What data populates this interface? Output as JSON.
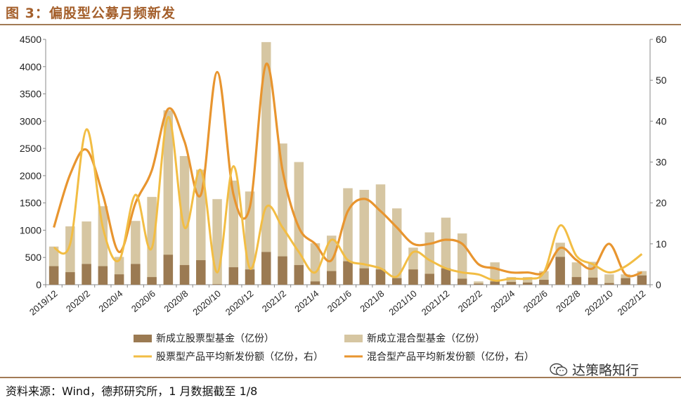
{
  "figure_title": "图 3：偏股型公募月频新发",
  "source": "资料来源：Wind，德邦研究所，1 月数据截至 1/8",
  "watermark": "达策略知行",
  "colors": {
    "stock_bar": "#9b7a52",
    "mixed_bar": "#d6c6a2",
    "stock_avg_line": "#f2bd44",
    "mixed_avg_line": "#e8952f",
    "rule": "#a27b55"
  },
  "chart_data": {
    "type": "bar",
    "x": [
      "2019/12",
      "2020/1",
      "2020/2",
      "2020/3",
      "2020/4",
      "2020/5",
      "2020/6",
      "2020/7",
      "2020/8",
      "2020/9",
      "2020/10",
      "2020/11",
      "2020/12",
      "2021/1",
      "2021/2",
      "2021/3",
      "2021/4",
      "2021/5",
      "2021/6",
      "2021/7",
      "2021/8",
      "2021/9",
      "2021/10",
      "2021/11",
      "2021/12",
      "2022/1",
      "2022/2",
      "2022/3",
      "2022/4",
      "2022/5",
      "2022/6",
      "2022/7",
      "2022/8",
      "2022/9",
      "2022/10",
      "2022/11",
      "2022/12"
    ],
    "x_tick_labels": [
      "2019/12",
      "2020/2",
      "2020/4",
      "2020/6",
      "2020/8",
      "2020/10",
      "2020/12",
      "2021/2",
      "2021/4",
      "2021/6",
      "2021/8",
      "2021/10",
      "2021/12",
      "2022/2",
      "2022/4",
      "2022/6",
      "2022/8",
      "2022/10",
      "2022/12"
    ],
    "y_left": {
      "min": 0,
      "max": 4500,
      "ticks": [
        0,
        500,
        1000,
        1500,
        2000,
        2500,
        3000,
        3500,
        4000,
        4500
      ]
    },
    "y_right": {
      "min": 0,
      "max": 60,
      "ticks": [
        0,
        10,
        20,
        30,
        40,
        50,
        60
      ]
    },
    "series": [
      {
        "name": "新成立股票型基金（亿份）",
        "type": "bar",
        "axis": "left",
        "values": [
          340,
          230,
          380,
          340,
          190,
          380,
          140,
          550,
          360,
          450,
          10,
          320,
          280,
          600,
          520,
          360,
          60,
          250,
          430,
          300,
          280,
          120,
          280,
          200,
          300,
          110,
          20,
          60,
          50,
          40,
          90,
          510,
          140,
          130,
          30,
          120,
          170
        ]
      },
      {
        "name": "新成立混合型基金（亿份）",
        "type": "bar",
        "axis": "left",
        "values": [
          700,
          1070,
          1160,
          1440,
          510,
          1170,
          1610,
          3200,
          2360,
          2110,
          1570,
          1910,
          1710,
          4450,
          2590,
          2250,
          760,
          900,
          1770,
          1740,
          1840,
          1400,
          680,
          960,
          1230,
          940,
          60,
          410,
          140,
          140,
          250,
          770,
          410,
          420,
          190,
          190,
          250
        ]
      },
      {
        "name": "股票型产品平均新发份额（亿份，右）",
        "type": "line",
        "axis": "right",
        "values": [
          9,
          10,
          38,
          14,
          6,
          22,
          9,
          41,
          14,
          28,
          3,
          29,
          4,
          19,
          14,
          8,
          3,
          11,
          6,
          5,
          4,
          2,
          8,
          6,
          4,
          3,
          2.5,
          1,
          1.5,
          1.5,
          3,
          14.5,
          7,
          5,
          3,
          4.5,
          7.5
        ]
      },
      {
        "name": "混合型产品平均新发份额（亿份，右）",
        "type": "line",
        "axis": "right",
        "values": [
          14,
          27,
          33,
          22,
          8,
          20,
          28,
          43,
          35,
          22,
          52,
          22,
          19,
          54,
          28,
          14,
          10,
          6,
          18,
          21,
          18,
          14,
          10,
          10,
          11,
          10,
          5,
          4,
          3,
          3,
          3,
          9,
          6,
          4,
          10,
          2.5,
          3
        ]
      }
    ]
  }
}
